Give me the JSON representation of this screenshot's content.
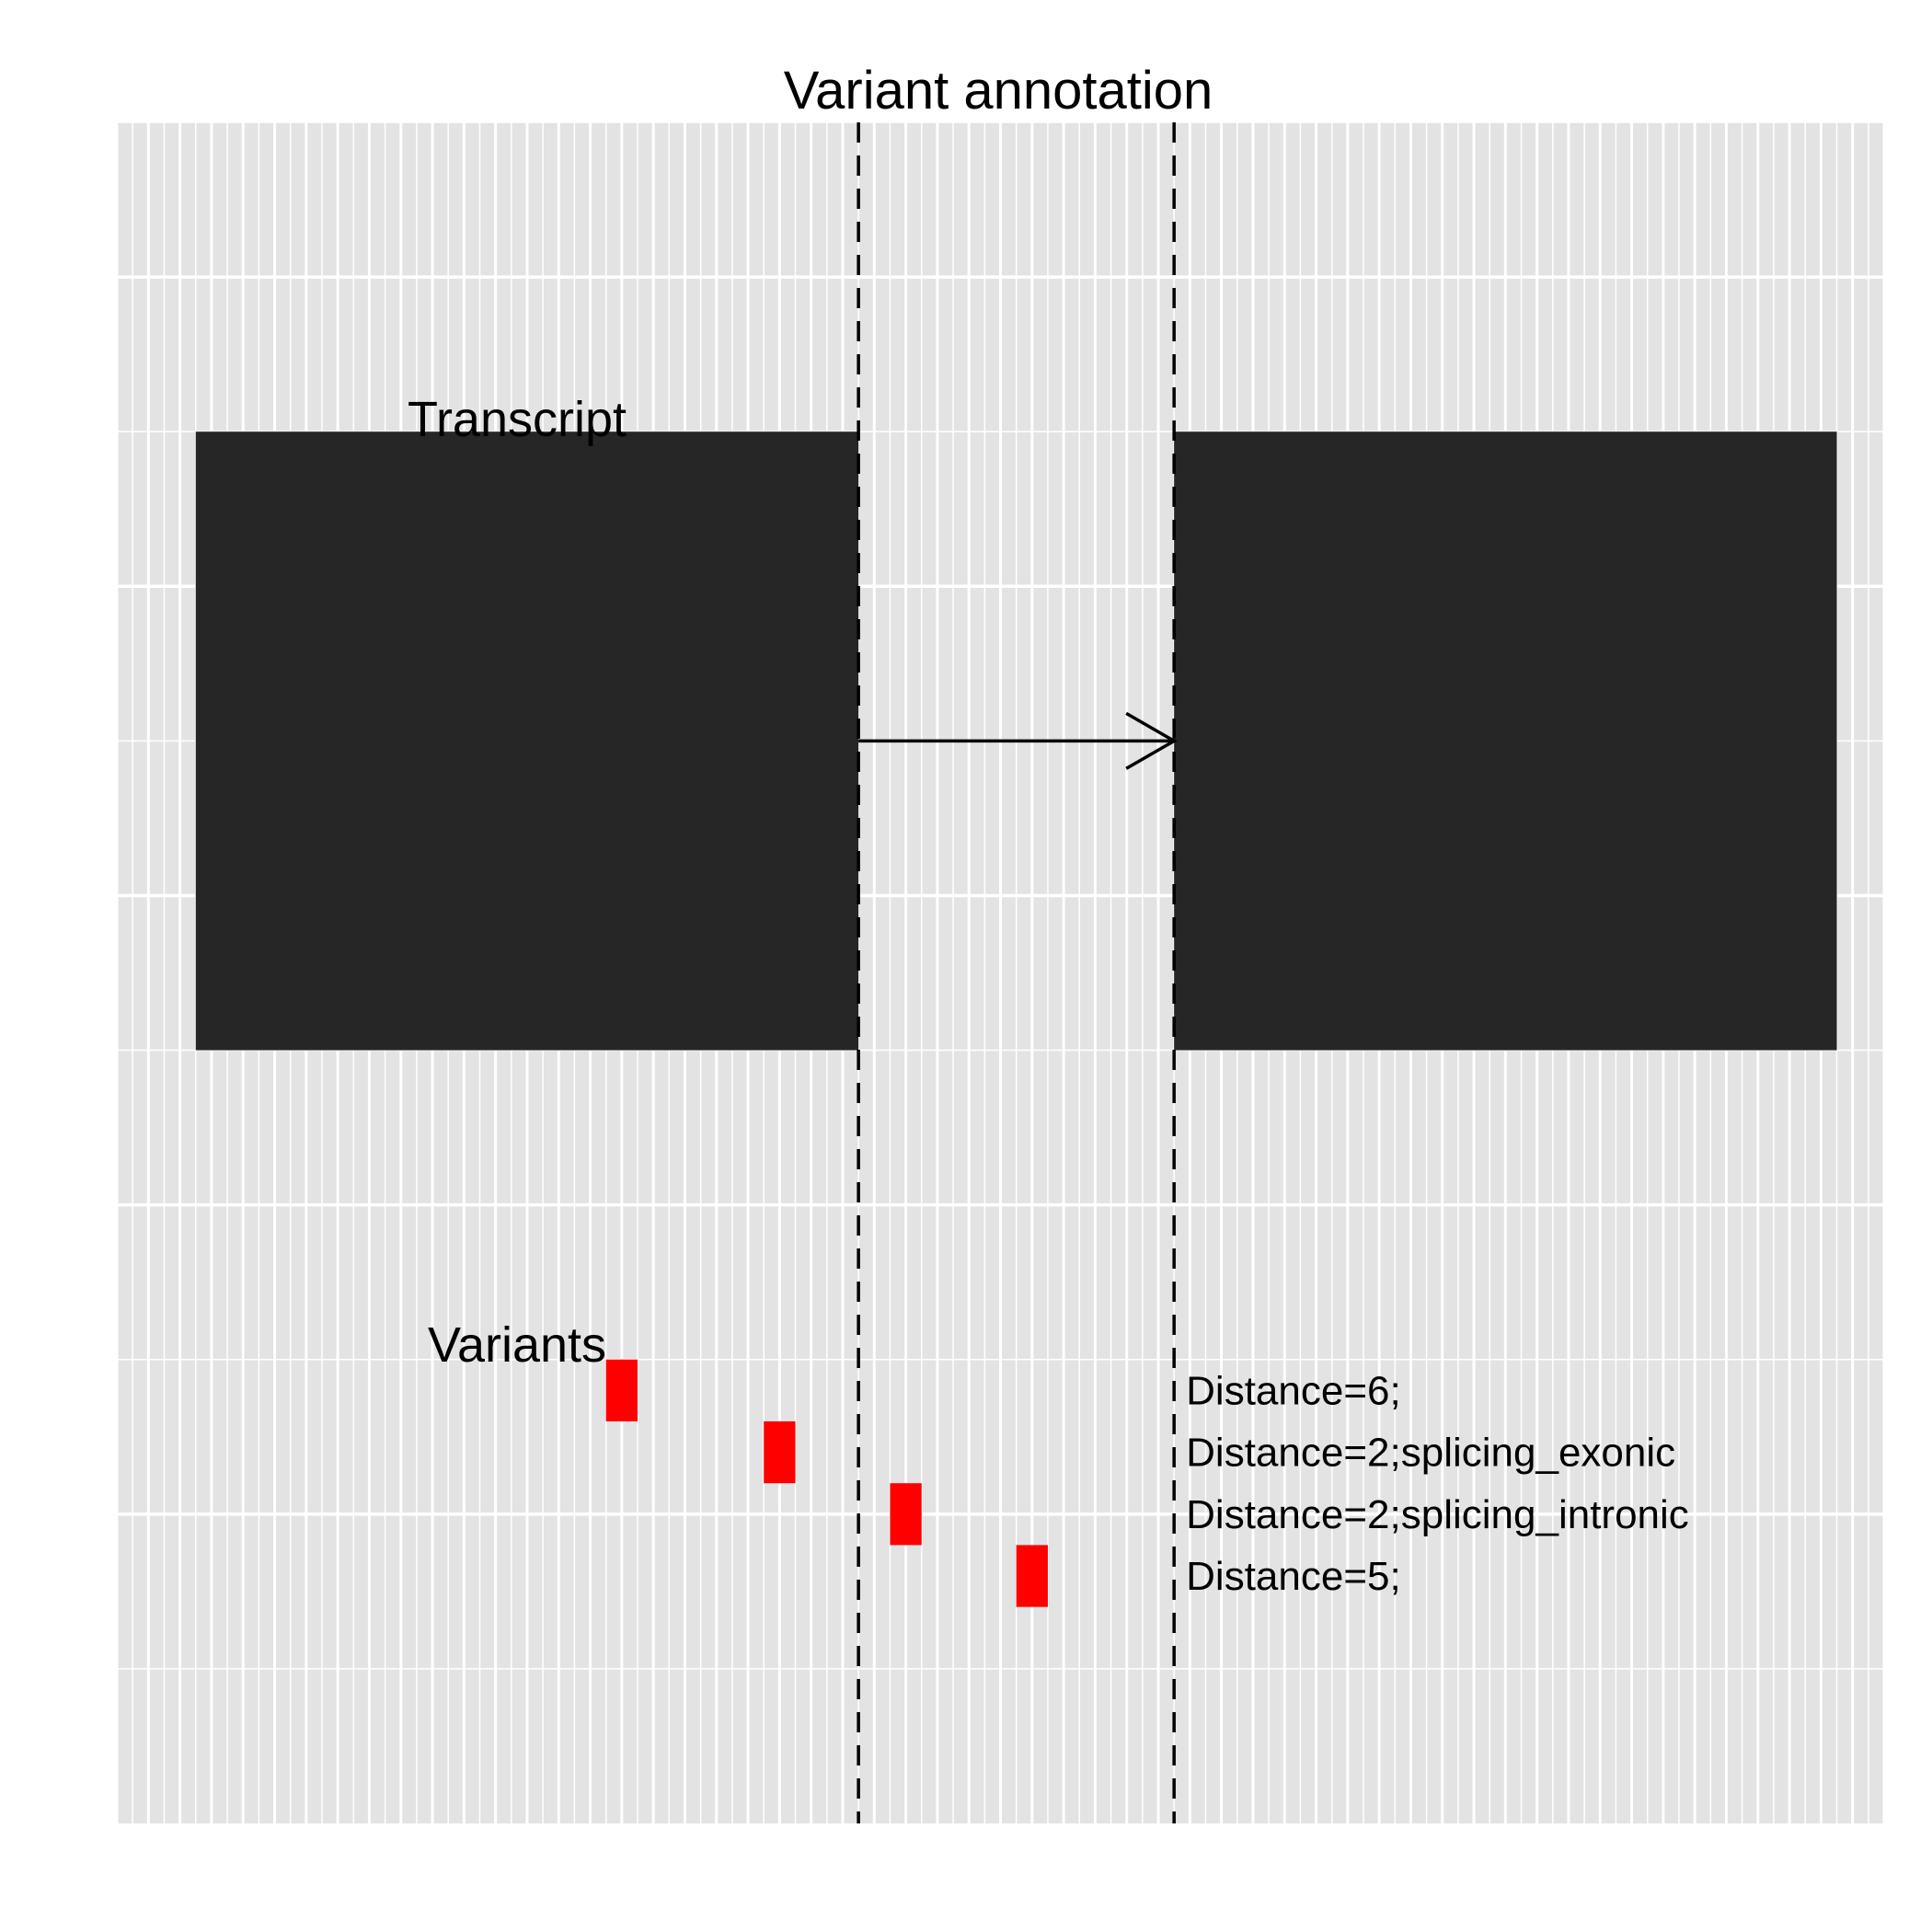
{
  "title": "Variant annotation",
  "labels": {
    "transcript": "Transcript",
    "variants": "Variants"
  },
  "colors": {
    "panel": "#e3e3e3",
    "grid": "#ffffff",
    "exon": "#262626",
    "variant": "#ff0000",
    "line": "#000000"
  },
  "scale": {
    "xmin": 1,
    "xmax": 57,
    "ymin": 0,
    "ymax": 5.5
  },
  "exons": [
    {
      "start": 3.5,
      "end": 24.5,
      "ymin": 2.5,
      "ymax": 4.5
    },
    {
      "start": 34.5,
      "end": 55.5,
      "ymin": 2.5,
      "ymax": 4.5
    }
  ],
  "junctions": [
    24.5,
    34.5
  ],
  "intron_arrow": {
    "from": 24.5,
    "to": 34.5,
    "y": 3.5
  },
  "variants": [
    {
      "start": 16.5,
      "end": 17.5,
      "ymin": 1.3,
      "ymax": 1.5,
      "annotation": "Distance=6;"
    },
    {
      "start": 21.5,
      "end": 22.5,
      "ymin": 1.1,
      "ymax": 1.3,
      "annotation": "Distance=2;splicing_exonic"
    },
    {
      "start": 25.5,
      "end": 26.5,
      "ymin": 0.9,
      "ymax": 1.1,
      "annotation": "Distance=2;splicing_intronic"
    },
    {
      "start": 29.5,
      "end": 30.5,
      "ymin": 0.7,
      "ymax": 0.9,
      "annotation": "Distance=5;"
    }
  ]
}
